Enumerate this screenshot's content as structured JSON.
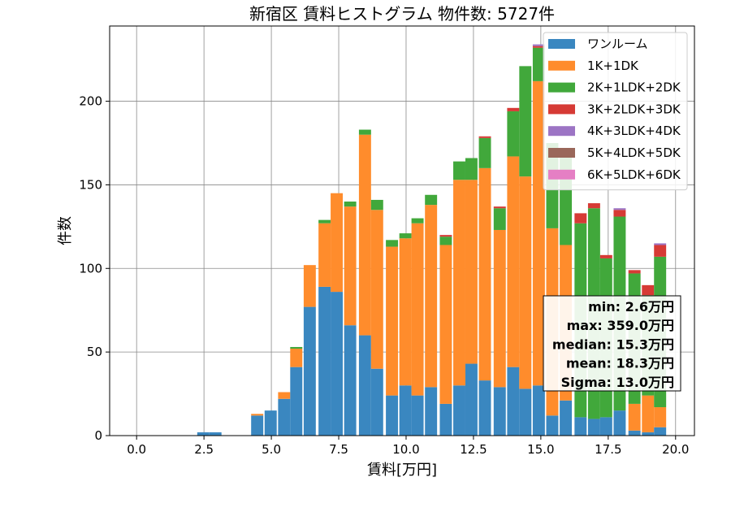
{
  "chart_data": {
    "type": "bar",
    "stacked": true,
    "title": "新宿区 賃料ヒストグラム 物件数: 5727件",
    "xlabel": "賃料[万円]",
    "ylabel": "件数",
    "xlim": [
      -1.0,
      20.7
    ],
    "ylim": [
      0,
      245
    ],
    "xticks": [
      0.0,
      2.5,
      5.0,
      7.5,
      10.0,
      12.5,
      15.0,
      17.5,
      20.0
    ],
    "xtick_labels": [
      "0.0",
      "2.5",
      "5.0",
      "7.5",
      "10.0",
      "12.5",
      "15.0",
      "17.5",
      "20.0"
    ],
    "yticks": [
      0,
      50,
      100,
      150,
      200
    ],
    "ytick_labels": [
      "0",
      "50",
      "100",
      "150",
      "200"
    ],
    "grid": true,
    "legend_position": "top-right",
    "bin_starts": [
      2.25,
      2.7,
      4.25,
      4.75,
      5.25,
      5.7,
      6.2,
      6.75,
      7.2,
      7.7,
      8.25,
      8.7,
      9.25,
      9.75,
      10.2,
      10.7,
      11.25,
      11.75,
      12.2,
      12.7,
      13.25,
      13.75,
      14.2,
      14.7,
      15.2,
      15.7,
      16.25,
      16.75,
      17.2,
      17.7,
      18.25,
      18.75,
      19.2
    ],
    "bin_width": 0.45,
    "series": [
      {
        "name": "ワンルーム",
        "color": "#3a87c0",
        "values": [
          2,
          2,
          12,
          15,
          22,
          41,
          77,
          89,
          86,
          66,
          60,
          40,
          24,
          30,
          24,
          29,
          19,
          30,
          43,
          33,
          29,
          41,
          28,
          30,
          12,
          21,
          11,
          10,
          11,
          15,
          3,
          2,
          5
        ]
      },
      {
        "name": "1K+1DK",
        "color": "#ff8c2c",
        "values": [
          0,
          0,
          1,
          0,
          4,
          11,
          25,
          38,
          59,
          71,
          120,
          95,
          89,
          88,
          103,
          109,
          95,
          123,
          110,
          127,
          94,
          126,
          127,
          182,
          112,
          93,
          0,
          0,
          0,
          0,
          16,
          22,
          12
        ]
      },
      {
        "name": "2K+1LDK+2DK",
        "color": "#41a83b",
        "values": [
          0,
          0,
          0,
          0,
          0,
          1,
          0,
          2,
          0,
          3,
          3,
          6,
          4,
          3,
          3,
          6,
          5,
          11,
          13,
          18,
          13,
          27,
          66,
          20,
          51,
          53,
          116,
          126,
          95,
          116,
          78,
          60,
          90
        ]
      },
      {
        "name": "3K+2LDK+3DK",
        "color": "#d63a35",
        "values": [
          0,
          0,
          0,
          0,
          0,
          0,
          0,
          0,
          0,
          0,
          0,
          0,
          0,
          0,
          0,
          0,
          1,
          0,
          0,
          1,
          1,
          2,
          0,
          1,
          0,
          0,
          6,
          3,
          2,
          4,
          2,
          6,
          7
        ]
      },
      {
        "name": "4K+3LDK+4DK",
        "color": "#9c74c4",
        "values": [
          0,
          0,
          0,
          0,
          0,
          0,
          0,
          0,
          0,
          0,
          0,
          0,
          0,
          0,
          0,
          0,
          0,
          0,
          0,
          0,
          0,
          0,
          0,
          1,
          0,
          0,
          0,
          0,
          0,
          1,
          0,
          0,
          1
        ]
      },
      {
        "name": "5K+4LDK+5DK",
        "color": "#9a675a",
        "values": [
          0,
          0,
          0,
          0,
          0,
          0,
          0,
          0,
          0,
          0,
          0,
          0,
          0,
          0,
          0,
          0,
          0,
          0,
          0,
          0,
          0,
          0,
          0,
          0,
          0,
          0,
          0,
          0,
          0,
          0,
          0,
          0,
          0
        ]
      },
      {
        "name": "6K+5LDK+6DK",
        "color": "#e57fc4",
        "values": [
          0,
          0,
          0,
          0,
          0,
          0,
          0,
          0,
          0,
          0,
          0,
          0,
          0,
          0,
          0,
          0,
          0,
          0,
          0,
          0,
          0,
          0,
          0,
          0,
          0,
          0,
          0,
          0,
          0,
          0,
          0,
          0,
          0
        ]
      }
    ],
    "stats": [
      "min: 2.6万円",
      "max: 359.0万円",
      "median: 15.3万円",
      "mean: 18.3万円",
      "Sigma: 13.0万円"
    ]
  }
}
